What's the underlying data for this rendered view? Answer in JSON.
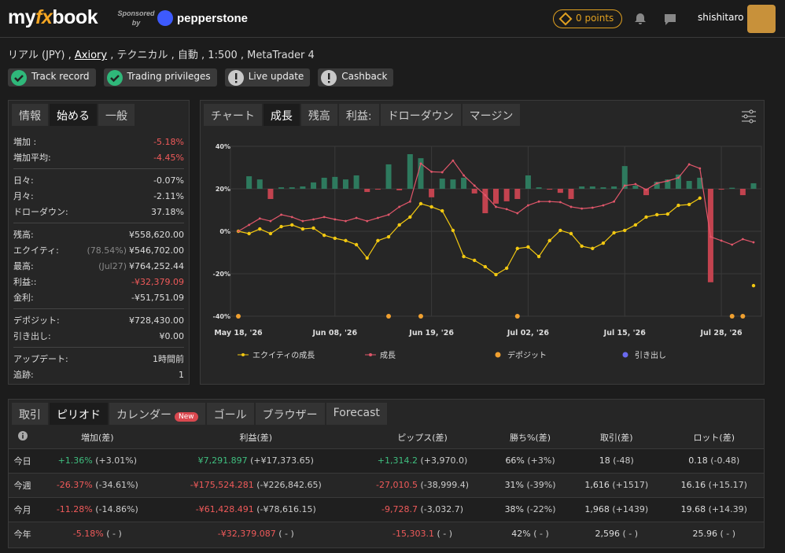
{
  "header": {
    "logo": [
      "my",
      "fx",
      "book"
    ],
    "sponsored": "Sponsored by",
    "sponsor": "pepperstone",
    "points": "0 points",
    "user": "shishitaro"
  },
  "account": {
    "prefix": "リアル (JPY) ,",
    "broker": "Axiory",
    "suffix": ", テクニカル , 自動 , 1:500 , MetaTrader 4"
  },
  "badges": [
    {
      "label": "Track record",
      "icon": "check"
    },
    {
      "label": "Trading privileges",
      "icon": "check"
    },
    {
      "label": "Live update",
      "icon": "alert"
    },
    {
      "label": "Cashback",
      "icon": "alert"
    }
  ],
  "stats": {
    "tabs": [
      "情報",
      "始める",
      "一般"
    ],
    "active_tab": 1,
    "groups": [
      [
        {
          "label": "増加 :",
          "value": "-5.18%",
          "color": "#f05a5a"
        },
        {
          "label": "増加平均:",
          "value": "-4.45%",
          "color": "#f05a5a"
        }
      ],
      [
        {
          "label": "日々:",
          "value": "-0.07%"
        },
        {
          "label": "月々:",
          "value": "-2.11%"
        },
        {
          "label": "ドローダウン:",
          "value": "37.18%"
        }
      ],
      [
        {
          "label": "残高:",
          "value": "¥558,620.00"
        },
        {
          "label": "エクイティ:",
          "note": "(78.54%)",
          "value": "¥546,702.00"
        },
        {
          "label": "最高:",
          "note": "(Jul27)",
          "value": "¥764,252.44"
        },
        {
          "label": "利益::",
          "value": "-¥32,379.09",
          "color": "#f05a5a"
        },
        {
          "label": "金利:",
          "value": "-¥51,751.09"
        }
      ],
      [
        {
          "label": "デポジット:",
          "value": "¥728,430.00"
        },
        {
          "label": "引き出し:",
          "value": "¥0.00"
        }
      ],
      [
        {
          "label": "アップデート:",
          "value": "1時間前"
        },
        {
          "label": "追跡:",
          "value": "1"
        }
      ]
    ]
  },
  "chart_tabs": {
    "tabs": [
      "チャート",
      "成長",
      "残高",
      "利益:",
      "ドローダウン",
      "マージン"
    ],
    "active_tab": 1
  },
  "chart_data": {
    "type": "line",
    "grid": true,
    "point_count": 49,
    "ylim": [
      -40,
      40
    ],
    "yticks": [
      {
        "value": 40,
        "label": "40%"
      },
      {
        "value": 20,
        "label": "20%"
      },
      {
        "value": 0,
        "label": "0%"
      },
      {
        "value": -20,
        "label": "-20%"
      },
      {
        "value": -40,
        "label": "-40%"
      }
    ],
    "xticks": [
      {
        "value": 0,
        "label": "May 18, '26"
      },
      {
        "value": 9,
        "label": "Jun 08, '26"
      },
      {
        "value": 18,
        "label": "Jun 19, '26"
      },
      {
        "value": 27,
        "label": "Jul 02, '26"
      },
      {
        "value": 36,
        "label": "Jul 15, '26"
      },
      {
        "value": 45,
        "label": "Jul 28, '26"
      }
    ],
    "y2lim": [
      -60,
      20
    ],
    "bars": {
      "axis": "y2",
      "colors": {
        "positive": "#2e7a5e",
        "negative": "#c2434f"
      },
      "values": [
        null,
        5.9,
        4.4,
        -4.8,
        0.7,
        0.7,
        1.1,
        3,
        5.2,
        5.6,
        4.4,
        6.3,
        -1.5,
        -0.4,
        11.5,
        -0.7,
        16.3,
        14.4,
        -4,
        4.8,
        4.4,
        5.2,
        -2.2,
        -11.5,
        -7,
        -5.9,
        -4.8,
        6.3,
        0.7,
        -0.4,
        -1.9,
        -4.8,
        1.1,
        1.1,
        0.7,
        1.1,
        10.7,
        1.5,
        -3,
        3.3,
        4.4,
        6.7,
        3.7,
        5.2,
        -44,
        -0.4,
        0.5,
        -3,
        2.6
      ]
    },
    "series": [
      {
        "name": "エクイティの成長",
        "color": "#f2c811",
        "values": [
          0,
          -1.1,
          1.1,
          -1.1,
          2.2,
          3,
          1.1,
          1.5,
          -1.9,
          -3.3,
          -4.4,
          -6.3,
          -12.6,
          -4.4,
          -2.6,
          3,
          6.7,
          13,
          11.5,
          9.6,
          0.4,
          -11.9,
          -13.7,
          -16.7,
          -20.4,
          -17.4,
          -8.1,
          -7.4,
          -11.9,
          -4.4,
          0.4,
          -1.1,
          -7,
          -8.1,
          -5.6,
          -0.7,
          0.4,
          3,
          6.7,
          7.8,
          8.1,
          12.2,
          12.6,
          15.6,
          null,
          null,
          null,
          null,
          -25.6
        ]
      },
      {
        "name": "成長",
        "color": "#e0566a",
        "values": [
          0,
          3,
          6,
          4.8,
          7.8,
          6.7,
          4.8,
          5.6,
          6.7,
          5.6,
          4.8,
          6.3,
          4.8,
          6.3,
          7.8,
          11.5,
          14,
          31.9,
          28,
          27.8,
          33.3,
          26.3,
          21.5,
          17,
          11.5,
          10.4,
          8.5,
          12.2,
          14,
          14,
          13.7,
          11.5,
          10.7,
          11.1,
          12.2,
          14,
          21.5,
          22.2,
          19.6,
          22.6,
          23.7,
          25.2,
          31.5,
          29.6,
          -2.6,
          -4.4,
          -6.3,
          -3.7,
          -5.2
        ]
      },
      {
        "name": "デポジット",
        "color": "#f0a030",
        "markers_x": [
          0,
          14,
          17,
          26,
          46,
          47
        ]
      },
      {
        "name": "引き出し",
        "color": "#6a6af0",
        "markers_x": []
      }
    ]
  },
  "period": {
    "tabs": [
      "取引",
      "ピリオド",
      "カレンダー",
      "ゴール",
      "ブラウザー",
      "Forecast"
    ],
    "active_tab": 1,
    "new_badge": "New",
    "new_tab": 2,
    "columns": [
      "増加(差)",
      "利益(差)",
      "ピップス(差)",
      "勝ち%(差)",
      "取引(差)",
      "ロット(差)"
    ],
    "rows": [
      {
        "label": "今日",
        "color": "#3fbf7f",
        "cells": [
          [
            "+1.36%",
            "(+3.01%)"
          ],
          [
            "¥7,291.897",
            "(+¥17,373.65)"
          ],
          [
            "+1,314.2",
            "(+3,970.0)"
          ],
          [
            "66%",
            "(+3%)"
          ],
          [
            "18",
            "(-48)"
          ],
          [
            "0.18",
            "(-0.48)"
          ]
        ]
      },
      {
        "label": "今週",
        "color": "#f05a5a",
        "cells": [
          [
            "-26.37%",
            "(-34.61%)"
          ],
          [
            "-¥175,524.281",
            "(-¥226,842.65)"
          ],
          [
            "-27,010.5",
            "(-38,999.4)"
          ],
          [
            "31%",
            "(-39%)"
          ],
          [
            "1,616",
            "(+1517)"
          ],
          [
            "16.16",
            "(+15.17)"
          ]
        ]
      },
      {
        "label": "今月",
        "color": "#f05a5a",
        "cells": [
          [
            "-11.28%",
            "(-14.86%)"
          ],
          [
            "-¥61,428.491",
            "(-¥78,616.15)"
          ],
          [
            "-9,728.7",
            "(-3,032.7)"
          ],
          [
            "38%",
            "(-22%)"
          ],
          [
            "1,968",
            "(+1439)"
          ],
          [
            "19.68",
            "(+14.39)"
          ]
        ]
      },
      {
        "label": "今年",
        "color": "#f05a5a",
        "cells": [
          [
            "-5.18%",
            "( - )"
          ],
          [
            "-¥32,379.087",
            "( - )"
          ],
          [
            "-15,303.1",
            "( - )"
          ],
          [
            "42%",
            "( - )"
          ],
          [
            "2,596",
            "( - )"
          ],
          [
            "25.96",
            "( - )"
          ]
        ]
      }
    ]
  }
}
